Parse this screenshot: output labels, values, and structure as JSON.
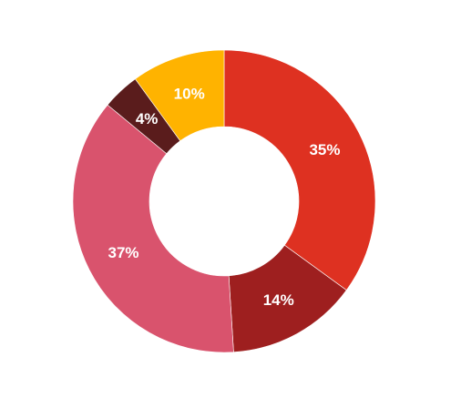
{
  "chart_data": {
    "type": "pie",
    "variant": "donut",
    "title": "",
    "categories": [
      "",
      "",
      "",
      "",
      ""
    ],
    "values": [
      35,
      14,
      37,
      4,
      10
    ],
    "labels": [
      "35%",
      "14%",
      "37%",
      "4%",
      "10%"
    ],
    "colors": [
      "#DE3121",
      "#9E1F1F",
      "#D9536D",
      "#5A1C1C",
      "#FFB300"
    ],
    "start_angle_deg": 0,
    "direction": "clockwise",
    "legend": "none"
  }
}
